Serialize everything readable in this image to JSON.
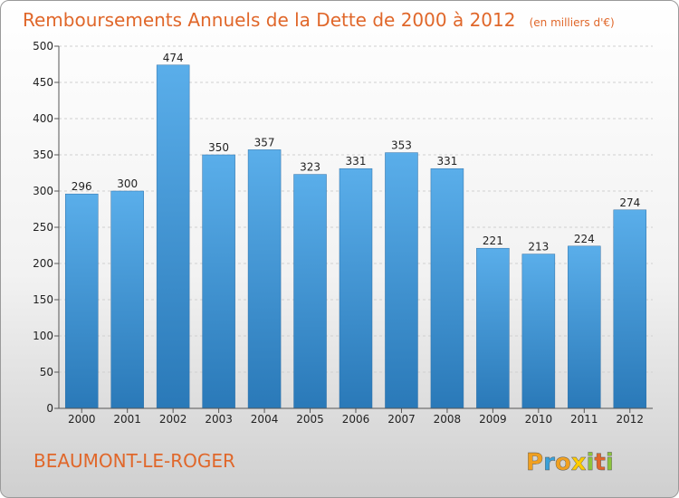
{
  "title": "Remboursements Annuels de la Dette de 2000 à 2012",
  "unit_note": "(en milliers d'€)",
  "location": "BEAUMONT-LE-ROGER",
  "logo_text": "Proxiti",
  "colors": {
    "accent": "#e0672a",
    "bar_top": "#5aaeea",
    "bar_bottom": "#2a79b8"
  },
  "chart_data": {
    "type": "bar",
    "categories": [
      "2000",
      "2001",
      "2002",
      "2003",
      "2004",
      "2005",
      "2006",
      "2007",
      "2008",
      "2009",
      "2010",
      "2011",
      "2012"
    ],
    "values": [
      296,
      300,
      474,
      350,
      357,
      323,
      331,
      353,
      331,
      221,
      213,
      224,
      274
    ],
    "ylim": [
      0,
      500
    ],
    "yticks": [
      0,
      50,
      100,
      150,
      200,
      250,
      300,
      350,
      400,
      450,
      500
    ],
    "grid": true
  }
}
